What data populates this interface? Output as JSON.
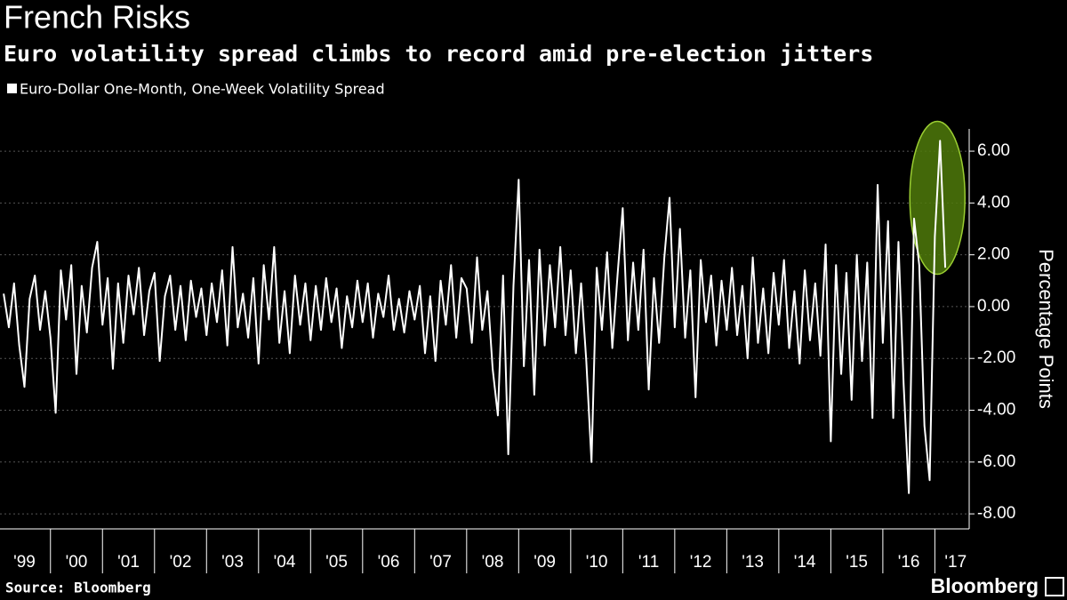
{
  "chart_data": {
    "type": "line",
    "title": "French Risks",
    "subtitle": "Euro volatility spread climbs to record amid pre-election jitters",
    "y_label": "Percentage Points",
    "source": "Source: Bloomberg",
    "brand": "Bloomberg",
    "x": [
      1999.1,
      1999.2,
      1999.3,
      1999.4,
      1999.5,
      1999.6,
      1999.7,
      1999.8,
      1999.9,
      2000.0,
      2000.1,
      2000.2,
      2000.3,
      2000.4,
      2000.5,
      2000.6,
      2000.7,
      2000.8,
      2000.9,
      2001.0,
      2001.1,
      2001.2,
      2001.3,
      2001.4,
      2001.5,
      2001.6,
      2001.7,
      2001.8,
      2001.9,
      2002.0,
      2002.1,
      2002.2,
      2002.3,
      2002.4,
      2002.5,
      2002.6,
      2002.7,
      2002.8,
      2002.9,
      2003.0,
      2003.1,
      2003.2,
      2003.3,
      2003.4,
      2003.5,
      2003.6,
      2003.7,
      2003.8,
      2003.9,
      2004.0,
      2004.1,
      2004.2,
      2004.3,
      2004.4,
      2004.5,
      2004.6,
      2004.7,
      2004.8,
      2004.9,
      2005.0,
      2005.1,
      2005.2,
      2005.3,
      2005.4,
      2005.5,
      2005.6,
      2005.7,
      2005.8,
      2005.9,
      2006.0,
      2006.1,
      2006.2,
      2006.3,
      2006.4,
      2006.5,
      2006.6,
      2006.7,
      2006.8,
      2006.9,
      2007.0,
      2007.1,
      2007.2,
      2007.3,
      2007.4,
      2007.5,
      2007.6,
      2007.7,
      2007.8,
      2007.9,
      2008.0,
      2008.1,
      2008.2,
      2008.3,
      2008.4,
      2008.5,
      2008.6,
      2008.7,
      2008.8,
      2008.9,
      2009.0,
      2009.1,
      2009.2,
      2009.3,
      2009.4,
      2009.5,
      2009.6,
      2009.7,
      2009.8,
      2009.9,
      2010.0,
      2010.1,
      2010.2,
      2010.3,
      2010.4,
      2010.5,
      2010.6,
      2010.7,
      2010.8,
      2010.9,
      2011.0,
      2011.1,
      2011.2,
      2011.3,
      2011.4,
      2011.5,
      2011.6,
      2011.7,
      2011.8,
      2011.9,
      2012.0,
      2012.1,
      2012.2,
      2012.3,
      2012.4,
      2012.5,
      2012.6,
      2012.7,
      2012.8,
      2012.9,
      2013.0,
      2013.1,
      2013.2,
      2013.3,
      2013.4,
      2013.5,
      2013.6,
      2013.7,
      2013.8,
      2013.9,
      2014.0,
      2014.1,
      2014.2,
      2014.3,
      2014.4,
      2014.5,
      2014.6,
      2014.7,
      2014.8,
      2014.9,
      2015.0,
      2015.1,
      2015.2,
      2015.3,
      2015.4,
      2015.5,
      2015.6,
      2015.7,
      2015.8,
      2015.9,
      2016.0,
      2016.1,
      2016.2,
      2016.3,
      2016.4,
      2016.5,
      2016.6,
      2016.7,
      2016.8,
      2016.9,
      2017.0,
      2017.1,
      2017.2
    ],
    "series": [
      {
        "name": "Euro-Dollar One-Month, One-Week Volatility Spread",
        "color": "#ffffff",
        "values": [
          0.5,
          -0.8,
          0.9,
          -1.5,
          -3.1,
          0.3,
          1.2,
          -0.9,
          0.6,
          -1.2,
          -4.1,
          1.4,
          -0.5,
          1.6,
          -2.6,
          0.8,
          -1.0,
          1.5,
          2.5,
          -0.7,
          1.1,
          -2.4,
          0.9,
          -1.4,
          1.2,
          -0.3,
          1.5,
          -1.1,
          0.6,
          1.3,
          -2.1,
          0.4,
          1.2,
          -0.9,
          0.8,
          -1.3,
          1.0,
          -0.4,
          0.7,
          -1.1,
          0.9,
          -0.6,
          1.4,
          -1.5,
          2.3,
          -0.8,
          0.5,
          -1.2,
          1.1,
          -2.2,
          1.6,
          -0.5,
          2.3,
          -1.4,
          0.6,
          -1.8,
          1.2,
          -0.7,
          0.9,
          -1.3,
          0.8,
          -0.9,
          1.1,
          -0.6,
          0.7,
          -1.6,
          0.4,
          -0.8,
          1.0,
          -0.6,
          0.9,
          -1.2,
          0.5,
          -0.4,
          1.2,
          -0.9,
          0.3,
          -1.0,
          0.6,
          -0.5,
          0.8,
          -1.8,
          0.4,
          -2.1,
          1.0,
          -0.7,
          1.6,
          -1.2,
          1.1,
          0.7,
          -1.4,
          1.9,
          -0.9,
          0.6,
          -2.4,
          -4.2,
          1.2,
          -5.7,
          0.8,
          4.9,
          -2.3,
          1.8,
          -3.4,
          2.2,
          -1.5,
          1.6,
          -0.8,
          2.3,
          -1.1,
          1.4,
          -1.8,
          0.9,
          -2.1,
          -6.0,
          1.5,
          -0.9,
          2.1,
          -1.6,
          1.2,
          3.8,
          -1.3,
          1.7,
          -0.9,
          2.2,
          -3.2,
          1.1,
          -1.4,
          1.9,
          4.2,
          -0.8,
          3.0,
          -1.2,
          1.4,
          -3.5,
          1.8,
          -0.6,
          1.2,
          -1.5,
          1.0,
          -0.9,
          1.5,
          -1.1,
          0.8,
          -2.0,
          1.9,
          -1.4,
          0.7,
          -1.8,
          1.3,
          -0.7,
          1.8,
          -1.6,
          0.6,
          -2.2,
          1.4,
          -1.3,
          0.9,
          -1.9,
          2.4,
          -5.2,
          1.6,
          -2.6,
          1.3,
          -3.6,
          2.0,
          -2.1,
          1.7,
          -4.3,
          4.7,
          -1.4,
          3.3,
          -4.3,
          2.5,
          -3.0,
          -7.2,
          3.4,
          1.6,
          -4.6,
          -6.7,
          2.7,
          6.4,
          1.5
        ]
      }
    ],
    "xlim": [
      1999.03,
      2017.66
    ],
    "xticks": [
      {
        "value": 1999.5,
        "label": "'99"
      },
      {
        "value": 2000.5,
        "label": "'00"
      },
      {
        "value": 2001.5,
        "label": "'01"
      },
      {
        "value": 2002.5,
        "label": "'02"
      },
      {
        "value": 2003.5,
        "label": "'03"
      },
      {
        "value": 2004.5,
        "label": "'04"
      },
      {
        "value": 2005.5,
        "label": "'05"
      },
      {
        "value": 2006.5,
        "label": "'06"
      },
      {
        "value": 2007.5,
        "label": "'07"
      },
      {
        "value": 2008.5,
        "label": "'08"
      },
      {
        "value": 2009.5,
        "label": "'09"
      },
      {
        "value": 2010.5,
        "label": "'10"
      },
      {
        "value": 2011.5,
        "label": "'11"
      },
      {
        "value": 2012.5,
        "label": "'12"
      },
      {
        "value": 2013.5,
        "label": "'13"
      },
      {
        "value": 2014.5,
        "label": "'14"
      },
      {
        "value": 2015.5,
        "label": "'15"
      },
      {
        "value": 2016.5,
        "label": "'16"
      },
      {
        "value": 2017.4,
        "label": "'17"
      }
    ],
    "ylim": [
      -8.58,
      6.86
    ],
    "yticks": [
      {
        "value": 6,
        "label": "6.00"
      },
      {
        "value": 4,
        "label": "4.00"
      },
      {
        "value": 2,
        "label": "2.00"
      },
      {
        "value": 0,
        "label": "0.00"
      },
      {
        "value": -2,
        "label": "-2.00"
      },
      {
        "value": -4,
        "label": "-4.00"
      },
      {
        "value": -6,
        "label": "-6.00"
      },
      {
        "value": -8,
        "label": "-8.00"
      }
    ],
    "grid": true,
    "highlight_color": "#4f7a0a"
  }
}
